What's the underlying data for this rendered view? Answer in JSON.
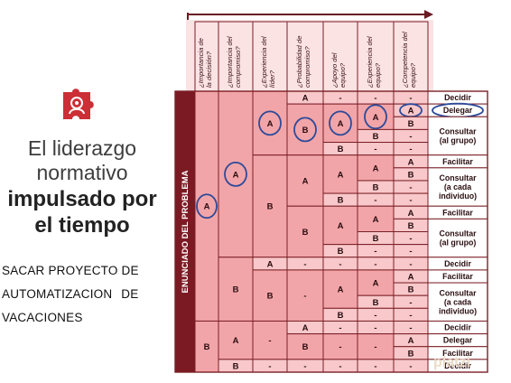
{
  "title": {
    "line1": "El liderazgo",
    "line2": "normativo",
    "line3": "impulsado por",
    "line4": "el tiempo"
  },
  "project": {
    "line1": "SACAR PROYECTO DE",
    "line2": "AUTOMATIZACION DE",
    "line3": "VACACIONES"
  },
  "watermark": "platzi",
  "colors": {
    "cell": "#f2a5a8",
    "cell_light": "#f8c8ca",
    "header_bg": "#fbe3e4",
    "side_bar": "#7b1a23",
    "grid": "#7a1f26",
    "circle": "#2c4a9a",
    "logo": "#cc2f36"
  },
  "matrix": {
    "row_axis_label": "ENUNCIADO DEL PROBLEMA",
    "headers": [
      "¿Importancia de la decisión?",
      "¿Importancia del compromiso?",
      "¿Experiencia del líder?",
      "¿Probabilidad de compromiso?",
      "¿Apoyo del equipo?",
      "¿Experiencia del equipo?",
      "¿Competencia del equipo?"
    ],
    "cells": [
      {
        "col": 0,
        "r0": 0,
        "r1": 18,
        "text": "A",
        "circled": true
      },
      {
        "col": 0,
        "r0": 18,
        "r1": 22,
        "text": "B"
      },
      {
        "col": 1,
        "r0": 0,
        "r1": 13,
        "text": "A",
        "circled": true
      },
      {
        "col": 1,
        "r0": 13,
        "r1": 18,
        "text": "B"
      },
      {
        "col": 1,
        "r0": 18,
        "r1": 21,
        "text": "A"
      },
      {
        "col": 1,
        "r0": 21,
        "r1": 22,
        "text": "B"
      },
      {
        "col": 2,
        "r0": 0,
        "r1": 5,
        "text": "A",
        "circled": true
      },
      {
        "col": 2,
        "r0": 5,
        "r1": 13,
        "text": "B"
      },
      {
        "col": 2,
        "r0": 13,
        "r1": 14,
        "text": "A"
      },
      {
        "col": 2,
        "r0": 14,
        "r1": 18,
        "text": "B"
      },
      {
        "col": 2,
        "r0": 18,
        "r1": 21,
        "text": "-"
      },
      {
        "col": 2,
        "r0": 21,
        "r1": 22,
        "text": "-"
      },
      {
        "col": 3,
        "r0": 0,
        "r1": 1,
        "text": "A"
      },
      {
        "col": 3,
        "r0": 1,
        "r1": 5,
        "text": "B",
        "circled": true
      },
      {
        "col": 3,
        "r0": 5,
        "r1": 9,
        "text": "A"
      },
      {
        "col": 3,
        "r0": 9,
        "r1": 13,
        "text": "B"
      },
      {
        "col": 3,
        "r0": 13,
        "r1": 14,
        "text": "-"
      },
      {
        "col": 3,
        "r0": 14,
        "r1": 18,
        "text": "-"
      },
      {
        "col": 3,
        "r0": 18,
        "r1": 19,
        "text": "A"
      },
      {
        "col": 3,
        "r0": 19,
        "r1": 21,
        "text": "B"
      },
      {
        "col": 3,
        "r0": 21,
        "r1": 22,
        "text": "-"
      },
      {
        "col": 4,
        "r0": 0,
        "r1": 1,
        "text": "-"
      },
      {
        "col": 4,
        "r0": 1,
        "r1": 4,
        "text": "A",
        "circled": true
      },
      {
        "col": 4,
        "r0": 4,
        "r1": 5,
        "text": "B"
      },
      {
        "col": 4,
        "r0": 5,
        "r1": 8,
        "text": "A"
      },
      {
        "col": 4,
        "r0": 8,
        "r1": 9,
        "text": "B"
      },
      {
        "col": 4,
        "r0": 9,
        "r1": 12,
        "text": "A"
      },
      {
        "col": 4,
        "r0": 12,
        "r1": 13,
        "text": "B"
      },
      {
        "col": 4,
        "r0": 13,
        "r1": 14,
        "text": "-"
      },
      {
        "col": 4,
        "r0": 14,
        "r1": 17,
        "text": "A"
      },
      {
        "col": 4,
        "r0": 17,
        "r1": 18,
        "text": "B"
      },
      {
        "col": 4,
        "r0": 18,
        "r1": 19,
        "text": "-"
      },
      {
        "col": 4,
        "r0": 19,
        "r1": 21,
        "text": "-"
      },
      {
        "col": 4,
        "r0": 21,
        "r1": 22,
        "text": "-"
      },
      {
        "col": 5,
        "r0": 0,
        "r1": 1,
        "text": "-"
      },
      {
        "col": 5,
        "r0": 1,
        "r1": 3,
        "text": "A",
        "circled": true
      },
      {
        "col": 5,
        "r0": 3,
        "r1": 4,
        "text": "B"
      },
      {
        "col": 5,
        "r0": 4,
        "r1": 5,
        "text": "-"
      },
      {
        "col": 5,
        "r0": 5,
        "r1": 7,
        "text": "A"
      },
      {
        "col": 5,
        "r0": 7,
        "r1": 8,
        "text": "B"
      },
      {
        "col": 5,
        "r0": 8,
        "r1": 9,
        "text": "-"
      },
      {
        "col": 5,
        "r0": 9,
        "r1": 11,
        "text": "A"
      },
      {
        "col": 5,
        "r0": 11,
        "r1": 12,
        "text": "B"
      },
      {
        "col": 5,
        "r0": 12,
        "r1": 13,
        "text": "-"
      },
      {
        "col": 5,
        "r0": 13,
        "r1": 14,
        "text": "-"
      },
      {
        "col": 5,
        "r0": 14,
        "r1": 16,
        "text": "A"
      },
      {
        "col": 5,
        "r0": 16,
        "r1": 17,
        "text": "B"
      },
      {
        "col": 5,
        "r0": 17,
        "r1": 18,
        "text": "-"
      },
      {
        "col": 5,
        "r0": 18,
        "r1": 19,
        "text": "-"
      },
      {
        "col": 5,
        "r0": 19,
        "r1": 21,
        "text": "-"
      },
      {
        "col": 5,
        "r0": 21,
        "r1": 22,
        "text": "-"
      },
      {
        "col": 6,
        "r0": 0,
        "r1": 1,
        "text": "-"
      },
      {
        "col": 6,
        "r0": 1,
        "r1": 2,
        "text": "A",
        "circled": true
      },
      {
        "col": 6,
        "r0": 2,
        "r1": 3,
        "text": "B"
      },
      {
        "col": 6,
        "r0": 3,
        "r1": 4,
        "text": "-"
      },
      {
        "col": 6,
        "r0": 4,
        "r1": 5,
        "text": "-"
      },
      {
        "col": 6,
        "r0": 5,
        "r1": 6,
        "text": "A"
      },
      {
        "col": 6,
        "r0": 6,
        "r1": 7,
        "text": "B"
      },
      {
        "col": 6,
        "r0": 7,
        "r1": 8,
        "text": "-"
      },
      {
        "col": 6,
        "r0": 8,
        "r1": 9,
        "text": "-"
      },
      {
        "col": 6,
        "r0": 9,
        "r1": 10,
        "text": "A"
      },
      {
        "col": 6,
        "r0": 10,
        "r1": 11,
        "text": "B"
      },
      {
        "col": 6,
        "r0": 11,
        "r1": 12,
        "text": "-"
      },
      {
        "col": 6,
        "r0": 12,
        "r1": 13,
        "text": "-"
      },
      {
        "col": 6,
        "r0": 13,
        "r1": 14,
        "text": "-"
      },
      {
        "col": 6,
        "r0": 14,
        "r1": 15,
        "text": "A"
      },
      {
        "col": 6,
        "r0": 15,
        "r1": 16,
        "text": "B"
      },
      {
        "col": 6,
        "r0": 16,
        "r1": 17,
        "text": "-"
      },
      {
        "col": 6,
        "r0": 17,
        "r1": 18,
        "text": "-"
      },
      {
        "col": 6,
        "r0": 18,
        "r1": 19,
        "text": "-"
      },
      {
        "col": 6,
        "r0": 19,
        "r1": 20,
        "text": "A"
      },
      {
        "col": 6,
        "r0": 20,
        "r1": 21,
        "text": "B"
      },
      {
        "col": 6,
        "r0": 21,
        "r1": 22,
        "text": "-"
      }
    ],
    "outcomes": [
      {
        "r0": 0,
        "r1": 1,
        "text": "Decidir"
      },
      {
        "r0": 1,
        "r1": 2,
        "text": "Delegar",
        "circled": true
      },
      {
        "r0": 2,
        "r1": 5,
        "text": "Consultar (al grupo)"
      },
      {
        "r0": 5,
        "r1": 6,
        "text": "Facilitar"
      },
      {
        "r0": 6,
        "r1": 9,
        "text": "Consultar (a cada individuo)"
      },
      {
        "r0": 9,
        "r1": 10,
        "text": "Facilitar"
      },
      {
        "r0": 10,
        "r1": 13,
        "text": "Consultar (al grupo)"
      },
      {
        "r0": 13,
        "r1": 14,
        "text": "Decidir"
      },
      {
        "r0": 14,
        "r1": 15,
        "text": "Facilitar"
      },
      {
        "r0": 15,
        "r1": 18,
        "text": "Consultar (a cada individuo)"
      },
      {
        "r0": 18,
        "r1": 19,
        "text": "Decidir"
      },
      {
        "r0": 19,
        "r1": 20,
        "text": "Delegar"
      },
      {
        "r0": 20,
        "r1": 21,
        "text": "Facilitar"
      },
      {
        "r0": 21,
        "r1": 22,
        "text": "Decidir"
      }
    ]
  }
}
